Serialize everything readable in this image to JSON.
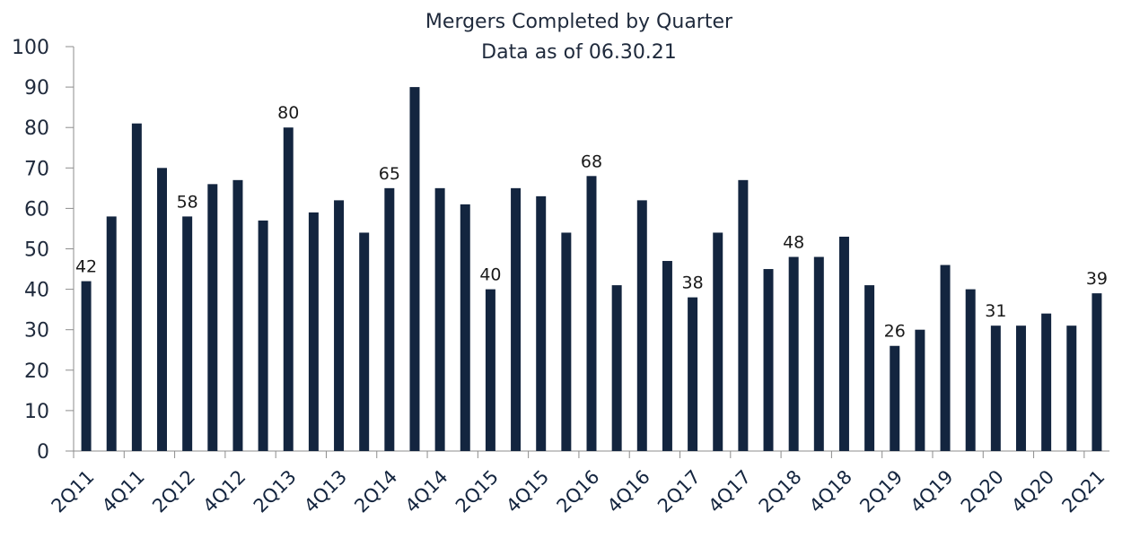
{
  "chart_data": {
    "type": "bar",
    "title": "Mergers Completed by Quarter",
    "subtitle": "Data as of 06.30.21",
    "xlabel": "",
    "ylabel": "",
    "ylim": [
      0,
      100
    ],
    "yticks": [
      0,
      10,
      20,
      30,
      40,
      50,
      60,
      70,
      80,
      90,
      100
    ],
    "grid": false,
    "legend": "none",
    "bar_color": "#13253f",
    "categories": [
      "2Q11",
      "3Q11",
      "4Q11",
      "1Q12",
      "2Q12",
      "3Q12",
      "4Q12",
      "1Q13",
      "2Q13",
      "3Q13",
      "4Q13",
      "1Q14",
      "2Q14",
      "3Q14",
      "4Q14",
      "1Q15",
      "2Q15",
      "3Q15",
      "4Q15",
      "1Q16",
      "2Q16",
      "3Q16",
      "4Q16",
      "1Q17",
      "2Q17",
      "3Q17",
      "4Q17",
      "1Q18",
      "2Q18",
      "3Q18",
      "4Q18",
      "1Q19",
      "2Q19",
      "3Q19",
      "4Q19",
      "1Q20",
      "2Q20",
      "3Q20",
      "4Q20",
      "1Q21",
      "2Q21"
    ],
    "visible_tick_labels": [
      "2Q11",
      "4Q11",
      "2Q12",
      "4Q12",
      "2Q13",
      "4Q13",
      "2Q14",
      "4Q14",
      "2Q15",
      "4Q15",
      "2Q16",
      "4Q16",
      "2Q17",
      "4Q17",
      "2Q18",
      "4Q18",
      "2Q19",
      "4Q19",
      "2Q20",
      "4Q20",
      "2Q21"
    ],
    "values": [
      42,
      58,
      81,
      70,
      58,
      66,
      67,
      57,
      80,
      59,
      62,
      54,
      65,
      90,
      65,
      61,
      40,
      65,
      63,
      54,
      68,
      41,
      62,
      47,
      38,
      54,
      67,
      45,
      48,
      48,
      53,
      41,
      26,
      30,
      46,
      40,
      31,
      31,
      34,
      31,
      39
    ],
    "data_labels": [
      {
        "category": "2Q11",
        "text": "42"
      },
      {
        "category": "2Q12",
        "text": "58"
      },
      {
        "category": "2Q13",
        "text": "80"
      },
      {
        "category": "2Q14",
        "text": "65"
      },
      {
        "category": "2Q15",
        "text": "40"
      },
      {
        "category": "2Q16",
        "text": "68"
      },
      {
        "category": "2Q17",
        "text": "38"
      },
      {
        "category": "2Q18",
        "text": "48"
      },
      {
        "category": "2Q19",
        "text": "26"
      },
      {
        "category": "2Q20",
        "text": "31"
      },
      {
        "category": "2Q21",
        "text": "39"
      }
    ]
  }
}
